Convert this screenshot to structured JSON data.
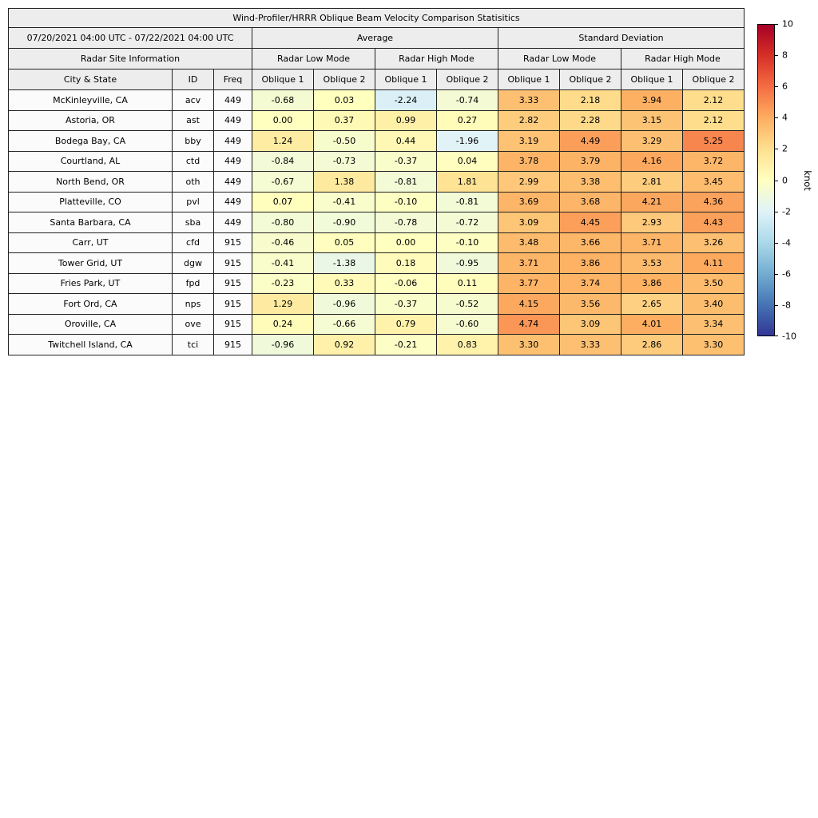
{
  "chart_data": {
    "type": "table",
    "title": "Wind-Profiler/HRRR Oblique Beam Velocity Comparison Statisitics",
    "date_range": "07/20/2021 04:00 UTC - 07/22/2021 04:00 UTC",
    "group_headers": [
      "Average",
      "Standard Deviation"
    ],
    "site_info_header": "Radar Site Information",
    "mode_headers": [
      "Radar Low Mode",
      "Radar High Mode",
      "Radar Low Mode",
      "Radar High Mode"
    ],
    "column_headers": [
      "City & State",
      "ID",
      "Freq",
      "Oblique 1",
      "Oblique 2",
      "Oblique 1",
      "Oblique 2",
      "Oblique 1",
      "Oblique 2",
      "Oblique 1",
      "Oblique 2"
    ],
    "rows": [
      {
        "city": "McKinleyville, CA",
        "id": "acv",
        "freq": "449",
        "values": [
          "-0.68",
          "0.03",
          "-2.24",
          "-0.74",
          "3.33",
          "2.18",
          "3.94",
          "2.12"
        ]
      },
      {
        "city": "Astoria, OR",
        "id": "ast",
        "freq": "449",
        "values": [
          "0.00",
          "0.37",
          "0.99",
          "0.27",
          "2.82",
          "2.28",
          "3.15",
          "2.12"
        ]
      },
      {
        "city": "Bodega Bay, CA",
        "id": "bby",
        "freq": "449",
        "values": [
          "1.24",
          "-0.50",
          "0.44",
          "-1.96",
          "3.19",
          "4.49",
          "3.29",
          "5.25"
        ]
      },
      {
        "city": "Courtland, AL",
        "id": "ctd",
        "freq": "449",
        "values": [
          "-0.84",
          "-0.73",
          "-0.37",
          "0.04",
          "3.78",
          "3.79",
          "4.16",
          "3.72"
        ]
      },
      {
        "city": "North Bend, OR",
        "id": "oth",
        "freq": "449",
        "values": [
          "-0.67",
          "1.38",
          "-0.81",
          "1.81",
          "2.99",
          "3.38",
          "2.81",
          "3.45"
        ]
      },
      {
        "city": "Platteville, CO",
        "id": "pvl",
        "freq": "449",
        "values": [
          "0.07",
          "-0.41",
          "-0.10",
          "-0.81",
          "3.69",
          "3.68",
          "4.21",
          "4.36"
        ]
      },
      {
        "city": "Santa Barbara, CA",
        "id": "sba",
        "freq": "449",
        "values": [
          "-0.80",
          "-0.90",
          "-0.78",
          "-0.72",
          "3.09",
          "4.45",
          "2.93",
          "4.43"
        ]
      },
      {
        "city": "Carr, UT",
        "id": "cfd",
        "freq": "915",
        "values": [
          "-0.46",
          "0.05",
          "0.00",
          "-0.10",
          "3.48",
          "3.66",
          "3.71",
          "3.26"
        ]
      },
      {
        "city": "Tower Grid, UT",
        "id": "dgw",
        "freq": "915",
        "values": [
          "-0.41",
          "-1.38",
          "0.18",
          "-0.95",
          "3.71",
          "3.86",
          "3.53",
          "4.11"
        ]
      },
      {
        "city": "Fries Park, UT",
        "id": "fpd",
        "freq": "915",
        "values": [
          "-0.23",
          "0.33",
          "-0.06",
          "0.11",
          "3.77",
          "3.74",
          "3.86",
          "3.50"
        ]
      },
      {
        "city": "Fort Ord, CA",
        "id": "nps",
        "freq": "915",
        "values": [
          "1.29",
          "-0.96",
          "-0.37",
          "-0.52",
          "4.15",
          "3.56",
          "2.65",
          "3.40"
        ]
      },
      {
        "city": "Oroville, CA",
        "id": "ove",
        "freq": "915",
        "values": [
          "0.24",
          "-0.66",
          "0.79",
          "-0.60",
          "4.74",
          "3.09",
          "4.01",
          "3.34"
        ]
      },
      {
        "city": "Twitchell Island, CA",
        "id": "tci",
        "freq": "915",
        "values": [
          "-0.96",
          "0.92",
          "-0.21",
          "0.83",
          "3.30",
          "3.33",
          "2.86",
          "3.30"
        ]
      }
    ],
    "colorbar": {
      "label": "knot",
      "min": -10,
      "max": 10,
      "ticks": [
        10,
        8,
        6,
        4,
        2,
        0,
        -2,
        -4,
        -6,
        -8,
        -10
      ],
      "colormap_low_to_high": [
        "#313695",
        "#4575b4",
        "#74add1",
        "#abd9e9",
        "#e0f3f8",
        "#ffffbf",
        "#fee090",
        "#fdae61",
        "#f46d43",
        "#d73027",
        "#a50026"
      ]
    }
  }
}
